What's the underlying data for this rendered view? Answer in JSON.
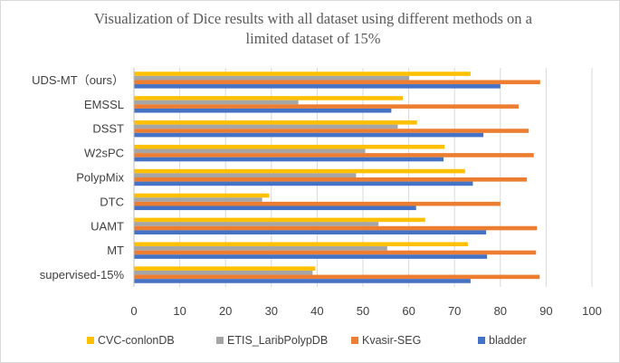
{
  "chart_data": {
    "type": "bar",
    "orientation": "horizontal",
    "title_lines": [
      "Visualization of Dice results with  all dataset using different methods on a",
      "limited dataset of 15%"
    ],
    "categories": [
      "UDS-MT（ours）",
      "EMSSL",
      "DSST",
      "W2sPC",
      "PolypMix",
      "DTC",
      "UAMT",
      "MT",
      "supervised-15%"
    ],
    "series": [
      {
        "name": "CVC-conlonDB",
        "color": "#FFC000",
        "values": [
          73.5,
          58.7,
          61.8,
          67.8,
          72.3,
          29.5,
          63.6,
          72.9,
          39.6
        ]
      },
      {
        "name": "ETIS_LaribPolypDB",
        "color": "#A5A5A5",
        "values": [
          60.1,
          35.9,
          57.6,
          50.5,
          48.5,
          28.0,
          53.4,
          55.3,
          39.0
        ]
      },
      {
        "name": "Kvasir-SEG",
        "color": "#ED7D31",
        "values": [
          88.7,
          84.0,
          86.2,
          87.3,
          85.8,
          80.0,
          88.0,
          87.8,
          88.6
        ]
      },
      {
        "name": "bladder",
        "color": "#4472C4",
        "values": [
          80.0,
          56.2,
          76.3,
          67.6,
          74.0,
          61.6,
          76.9,
          77.1,
          73.5
        ]
      }
    ],
    "xlim": [
      0,
      100
    ],
    "xticks": [
      "0",
      "10",
      "20",
      "30",
      "40",
      "50",
      "60",
      "70",
      "80",
      "90",
      "100"
    ],
    "grid": true,
    "legend_position": "bottom"
  }
}
